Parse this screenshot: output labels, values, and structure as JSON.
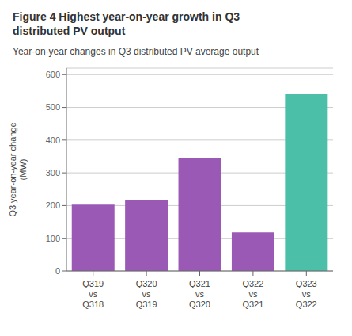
{
  "chart_data": {
    "type": "bar",
    "title": "Figure 4  Highest year-on-year growth in Q3\ndistributed PV output",
    "subtitle": "Year-on-year changes in Q3 distributed PV average output",
    "categories": [
      "Q319\nvs\nQ318",
      "Q320\nvs\nQ319",
      "Q321\nvs\nQ320",
      "Q322\nvs\nQ321",
      "Q323\nvs\nQ322"
    ],
    "values": [
      203,
      218,
      345,
      118,
      540
    ],
    "colors": [
      "#9B59B6",
      "#9B59B6",
      "#9B59B6",
      "#9B59B6",
      "#4CBFA8"
    ],
    "ylabel": "Q3 year-on-year change\n(MW)",
    "ylim": [
      0,
      620
    ],
    "yticks": [
      0,
      100,
      200,
      300,
      400,
      500,
      600
    ],
    "grid": true
  }
}
